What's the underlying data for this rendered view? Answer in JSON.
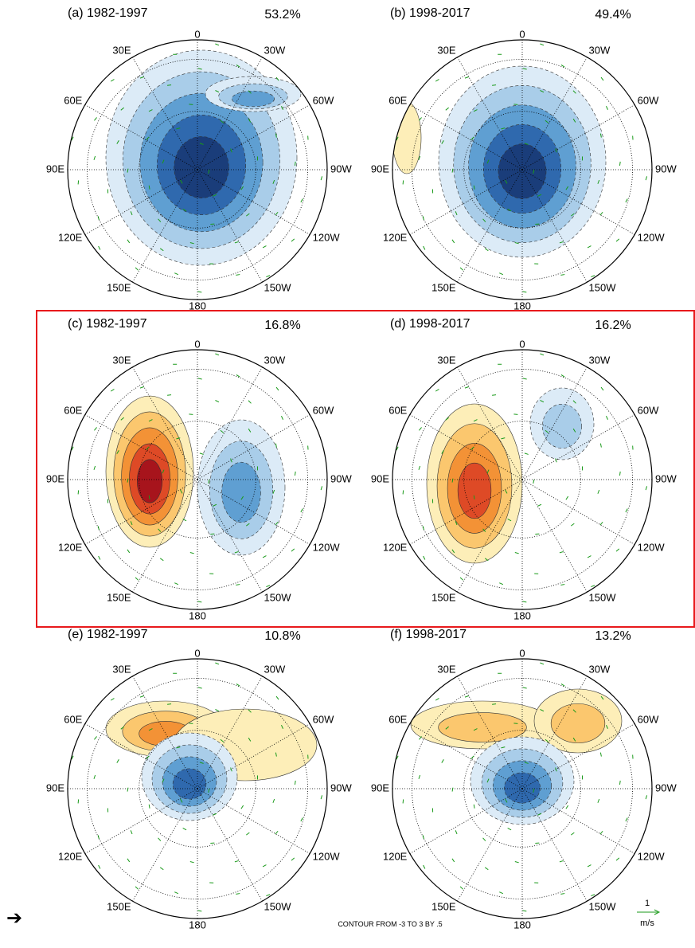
{
  "panels": [
    {
      "label": "(a) 1982-1997",
      "percent": "53.2%"
    },
    {
      "label": "(b) 1998-2017",
      "percent": "49.4%"
    },
    {
      "label": "(c) 1982-1997",
      "percent": "16.8%"
    },
    {
      "label": "(d) 1998-2017",
      "percent": "16.2%"
    },
    {
      "label": "(e) 1982-1997",
      "percent": "10.8%"
    },
    {
      "label": "(f) 1998-2017",
      "percent": "13.2%"
    }
  ],
  "lon_labels": [
    "0",
    "30W",
    "60W",
    "90W",
    "120W",
    "150W",
    "180",
    "150E",
    "120E",
    "90E",
    "60E",
    "30E"
  ],
  "footer": "CONTOUR FROM -3 TO 3 BY .5",
  "vector_legend": {
    "value": "1",
    "unit": "m/s"
  },
  "arrow": "➔"
}
